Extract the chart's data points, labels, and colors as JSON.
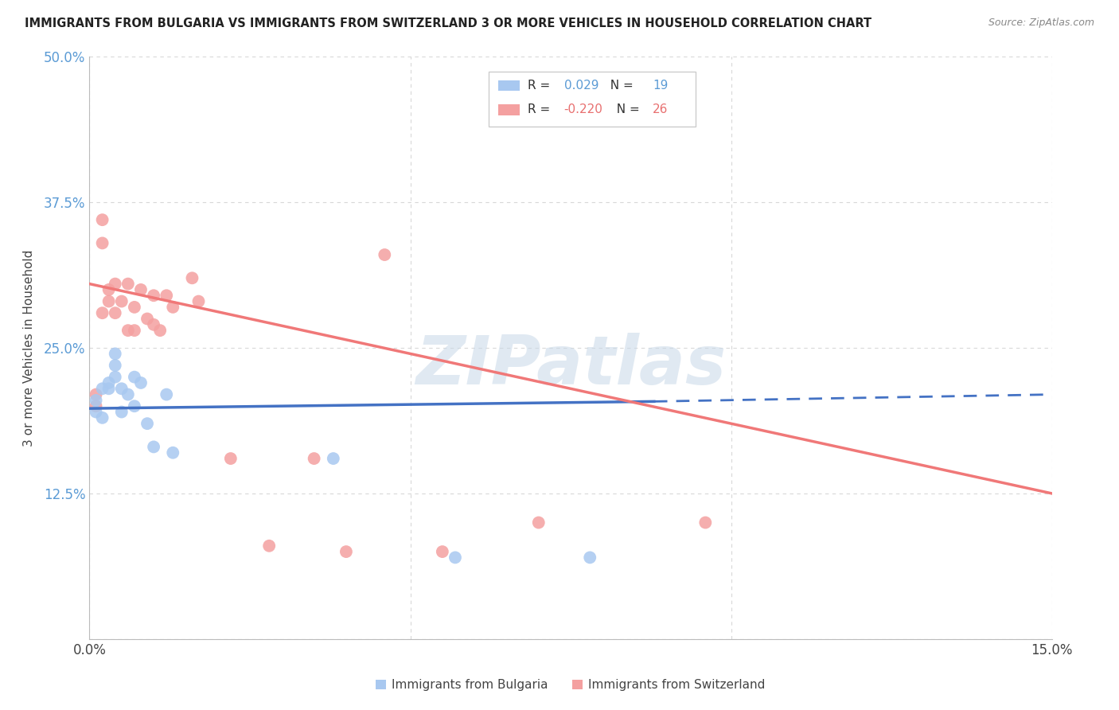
{
  "title": "IMMIGRANTS FROM BULGARIA VS IMMIGRANTS FROM SWITZERLAND 3 OR MORE VEHICLES IN HOUSEHOLD CORRELATION CHART",
  "source": "Source: ZipAtlas.com",
  "ylabel": "3 or more Vehicles in Household",
  "xmin": 0.0,
  "xmax": 0.15,
  "ymin": 0.0,
  "ymax": 0.5,
  "xticks": [
    0.0,
    0.05,
    0.1,
    0.15
  ],
  "xticklabels": [
    "0.0%",
    "",
    "",
    "15.0%"
  ],
  "yticks": [
    0.0,
    0.125,
    0.25,
    0.375,
    0.5
  ],
  "yticklabels": [
    "",
    "12.5%",
    "25.0%",
    "37.5%",
    "50.0%"
  ],
  "bg_color": "#ffffff",
  "grid_color": "#d8d8d8",
  "watermark_text": "ZIPatlas",
  "legend_R1": "0.029",
  "legend_N1": "19",
  "legend_R2": "-0.220",
  "legend_N2": "26",
  "color_bulgaria": "#a8c8f0",
  "color_switzerland": "#f4a0a0",
  "color_bulgaria_line": "#4472c4",
  "color_switzerland_line": "#f07878",
  "bulgaria_scatter_x": [
    0.001,
    0.001,
    0.002,
    0.002,
    0.003,
    0.003,
    0.004,
    0.004,
    0.004,
    0.005,
    0.005,
    0.006,
    0.007,
    0.007,
    0.008,
    0.009,
    0.01,
    0.012,
    0.013,
    0.038,
    0.057,
    0.078
  ],
  "bulgaria_scatter_y": [
    0.195,
    0.205,
    0.19,
    0.215,
    0.22,
    0.215,
    0.235,
    0.245,
    0.225,
    0.215,
    0.195,
    0.21,
    0.225,
    0.2,
    0.22,
    0.185,
    0.165,
    0.21,
    0.16,
    0.155,
    0.07,
    0.07
  ],
  "switzerland_scatter_x": [
    0.001,
    0.001,
    0.002,
    0.002,
    0.002,
    0.003,
    0.003,
    0.004,
    0.004,
    0.005,
    0.006,
    0.006,
    0.007,
    0.007,
    0.008,
    0.009,
    0.01,
    0.01,
    0.011,
    0.012,
    0.013,
    0.016,
    0.017,
    0.022,
    0.028,
    0.035,
    0.04,
    0.046,
    0.055,
    0.07,
    0.096
  ],
  "switzerland_scatter_y": [
    0.2,
    0.21,
    0.36,
    0.34,
    0.28,
    0.29,
    0.3,
    0.305,
    0.28,
    0.29,
    0.305,
    0.265,
    0.285,
    0.265,
    0.3,
    0.275,
    0.295,
    0.27,
    0.265,
    0.295,
    0.285,
    0.31,
    0.29,
    0.155,
    0.08,
    0.155,
    0.075,
    0.33,
    0.075,
    0.1,
    0.1
  ],
  "legend_label1": "Immigrants from Bulgaria",
  "legend_label2": "Immigrants from Switzerland",
  "bulgaria_line_x": [
    0.0,
    0.085,
    0.15
  ],
  "bulgaria_line_y": [
    0.195,
    0.205,
    0.215
  ],
  "bulgaria_line_dash": [
    false,
    true,
    true
  ],
  "switzerland_line_x": [
    0.0,
    0.15
  ],
  "switzerland_line_y": [
    0.305,
    0.125
  ]
}
